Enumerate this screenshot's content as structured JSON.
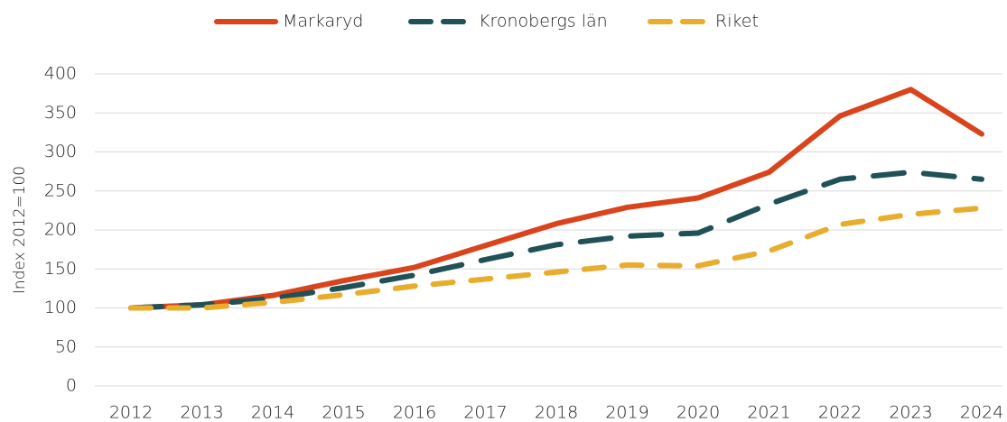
{
  "chart_data": {
    "type": "line",
    "y_label": "Index 2012=100",
    "categories": [
      "2012",
      "2013",
      "2014",
      "2015",
      "2016",
      "2017",
      "2018",
      "2019",
      "2020",
      "2021",
      "2022",
      "2023",
      "2024"
    ],
    "series": [
      {
        "name": "Markaryd",
        "color": "#d9441c",
        "values": [
          100,
          104,
          116,
          135,
          152,
          180,
          208,
          229,
          241,
          274,
          346,
          380,
          323
        ]
      },
      {
        "name": "Kronobergs län",
        "color": "#1f5157",
        "values": [
          100,
          104,
          112,
          126,
          142,
          162,
          181,
          192,
          196,
          233,
          265,
          274,
          265
        ]
      },
      {
        "name": "Riket",
        "color": "#e8ad2c",
        "values": [
          100,
          100,
          107,
          117,
          128,
          137,
          146,
          155,
          154,
          173,
          207,
          220,
          228
        ]
      }
    ],
    "ylim": [
      0,
      400
    ],
    "yticks": [
      0,
      50,
      100,
      150,
      200,
      250,
      300,
      350,
      400
    ],
    "grid": true,
    "legend": "top"
  }
}
